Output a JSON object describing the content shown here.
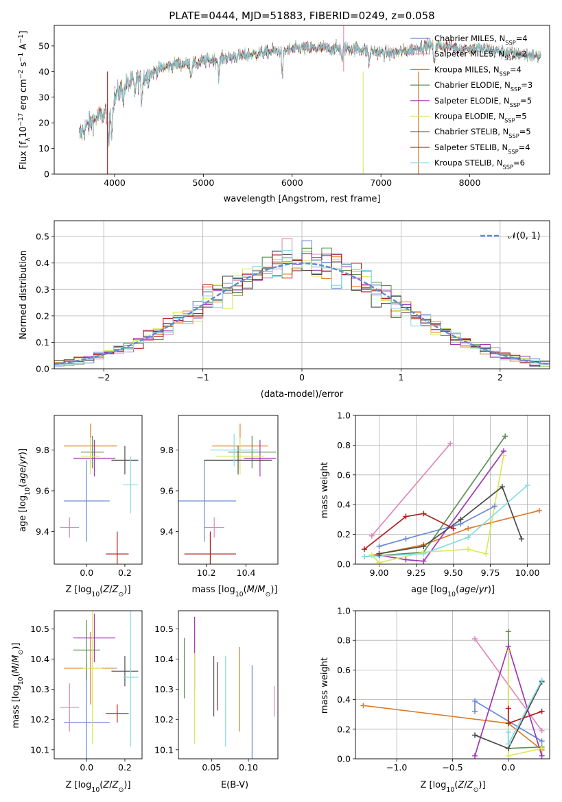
{
  "chart_data": [
    {
      "type": "line",
      "title": "PLATE=0444, MJD=51883, FIBERID=0249, z=0.058",
      "xlabel": "wavelength [Angstrom, rest frame]",
      "ylabel": "Flux [f_λ10^-17 erg cm^-2 s^-1 A^-1]",
      "xlim": [
        3320,
        8900
      ],
      "ylim": [
        0,
        58
      ],
      "xticks": [
        4000,
        5000,
        6000,
        7000,
        8000
      ],
      "yticks": [
        0,
        10,
        20,
        30,
        40,
        50
      ],
      "legend_position": "upper-right",
      "series": [
        {
          "name": "Chabrier MILES, N_SSP=4",
          "color": "#6a8ad8"
        },
        {
          "name": "Salpeter MILES, N_SSP=2",
          "color": "#e388b5"
        },
        {
          "name": "Kroupa MILES, N_SSP=4",
          "color": "#e07a25"
        },
        {
          "name": "Chabrier ELODIE, N_SSP=3",
          "color": "#5f8f55"
        },
        {
          "name": "Salpeter ELODIE, N_SSP=5",
          "color": "#9e35b5"
        },
        {
          "name": "Kroupa ELODIE, N_SSP=5",
          "color": "#dbe85a"
        },
        {
          "name": "Chabrier STELIB, N_SSP=5",
          "color": "#4a4a4a"
        },
        {
          "name": "Salpeter STELIB, N_SSP=4",
          "color": "#b01f1f"
        },
        {
          "name": "Kroupa STELIB, N_SSP=6",
          "color": "#86dce6"
        }
      ],
      "continuum": [
        [
          3600,
          15
        ],
        [
          3700,
          19
        ],
        [
          3800,
          22
        ],
        [
          3900,
          24
        ],
        [
          4000,
          30
        ],
        [
          4100,
          34
        ],
        [
          4200,
          36
        ],
        [
          4300,
          37
        ],
        [
          4400,
          39
        ],
        [
          4500,
          41
        ],
        [
          4700,
          43
        ],
        [
          4900,
          43
        ],
        [
          5000,
          44
        ],
        [
          5200,
          45
        ],
        [
          5400,
          46
        ],
        [
          5600,
          47
        ],
        [
          5800,
          48
        ],
        [
          5900,
          48
        ],
        [
          6100,
          49
        ],
        [
          6300,
          49
        ],
        [
          6500,
          49
        ],
        [
          6700,
          49
        ],
        [
          6900,
          48
        ],
        [
          7100,
          47
        ],
        [
          7300,
          48
        ],
        [
          7500,
          50
        ],
        [
          7700,
          50
        ],
        [
          7900,
          49
        ],
        [
          8100,
          49
        ],
        [
          8300,
          48
        ],
        [
          8500,
          47
        ],
        [
          8800,
          46
        ]
      ],
      "absorption_features": [
        [
          3934,
          14
        ],
        [
          3969,
          12
        ],
        [
          4102,
          5
        ],
        [
          4227,
          5
        ],
        [
          4304,
          8
        ],
        [
          4861,
          5
        ],
        [
          5175,
          7
        ],
        [
          5890,
          10
        ],
        [
          6563,
          5
        ],
        [
          6867,
          5
        ],
        [
          7600,
          8
        ]
      ],
      "spikes": [
        [
          3920,
          0,
          "#b01f1f"
        ],
        [
          6800,
          0,
          "#dbe85a"
        ],
        [
          7420,
          0,
          "#e07a25"
        ],
        [
          6580,
          58,
          "#e388b5"
        ]
      ]
    },
    {
      "type": "bar",
      "xlabel": "(data-model)/error",
      "ylabel": "Normed distribution",
      "xlim": [
        -2.5,
        2.5
      ],
      "ylim": [
        0,
        0.56
      ],
      "xticks": [
        -2,
        -1,
        0,
        1,
        2
      ],
      "yticks": [
        0.0,
        0.1,
        0.2,
        0.3,
        0.4,
        0.5
      ],
      "bin_width": 0.1,
      "legend": {
        "label": "𝒩(0, 1)",
        "position": "upper-right",
        "color": "#5b8ad6"
      }
    },
    {
      "type": "scatter",
      "xlabel": "Z [log10(Z/Z⊙)]",
      "ylabel": "age [log10(age/yr)]",
      "xlim": [
        -0.17,
        0.29
      ],
      "ylim": [
        9.24,
        9.97
      ],
      "xticks": [
        0.0,
        0.2
      ],
      "yticks": [
        9.4,
        9.6,
        9.8
      ],
      "points": [
        {
          "x": 0.0,
          "y": 9.55,
          "ex": 0.12,
          "ey": 0.2,
          "color": "#6a8ad8"
        },
        {
          "x": -0.09,
          "y": 9.42,
          "ex": 0.05,
          "ey": 0.05,
          "color": "#e388b5"
        },
        {
          "x": 0.02,
          "y": 9.82,
          "ex": 0.14,
          "ey": 0.11,
          "color": "#e07a25"
        },
        {
          "x": 0.03,
          "y": 9.79,
          "ex": 0.06,
          "ey": 0.08,
          "color": "#5f8f55"
        },
        {
          "x": 0.04,
          "y": 9.76,
          "ex": 0.11,
          "ey": 0.09,
          "color": "#9e35b5"
        },
        {
          "x": 0.02,
          "y": 9.77,
          "ex": 0.05,
          "ey": 0.09,
          "color": "#dbe85a"
        },
        {
          "x": 0.2,
          "y": 9.75,
          "ex": 0.07,
          "ey": 0.07,
          "color": "#4a4a4a"
        },
        {
          "x": 0.16,
          "y": 9.29,
          "ex": 0.06,
          "ey": 0.11,
          "color": "#b01f1f"
        },
        {
          "x": 0.23,
          "y": 9.63,
          "ex": 0.04,
          "ey": 0.14,
          "color": "#86dce6"
        }
      ]
    },
    {
      "type": "scatter",
      "xlabel": "mass [log10(M/M⊙)]",
      "xlim": [
        10.06,
        10.56
      ],
      "ylim": [
        9.24,
        9.97
      ],
      "xticks": [
        10.2,
        10.4
      ],
      "yticks": [
        9.4,
        9.6,
        9.8
      ],
      "points": [
        {
          "x": 10.19,
          "y": 9.55,
          "ex": 0.16,
          "ey": 0.2,
          "color": "#6a8ad8"
        },
        {
          "x": 10.24,
          "y": 9.42,
          "ex": 0.05,
          "ey": 0.05,
          "color": "#e388b5"
        },
        {
          "x": 10.37,
          "y": 9.82,
          "ex": 0.14,
          "ey": 0.11,
          "color": "#e07a25"
        },
        {
          "x": 10.43,
          "y": 9.79,
          "ex": 0.12,
          "ey": 0.08,
          "color": "#5f8f55"
        },
        {
          "x": 10.47,
          "y": 9.76,
          "ex": 0.08,
          "ey": 0.09,
          "color": "#9e35b5"
        },
        {
          "x": 10.37,
          "y": 9.77,
          "ex": 0.12,
          "ey": 0.09,
          "color": "#dbe85a"
        },
        {
          "x": 10.36,
          "y": 9.75,
          "ex": 0.17,
          "ey": 0.07,
          "color": "#4a4a4a"
        },
        {
          "x": 10.22,
          "y": 9.29,
          "ex": 0.13,
          "ey": 0.11,
          "color": "#b01f1f"
        },
        {
          "x": 10.34,
          "y": 9.8,
          "ex": 0.12,
          "ey": 0.08,
          "color": "#86dce6"
        }
      ]
    },
    {
      "type": "line",
      "xlabel": "age [log10(age/yr)]",
      "ylabel": "mass weight",
      "xlim": [
        8.84,
        10.15
      ],
      "ylim": [
        0,
        1.0
      ],
      "xticks": [
        9.0,
        9.25,
        9.5,
        9.75,
        10.0
      ],
      "yticks": [
        0.0,
        0.2,
        0.4,
        0.6,
        0.8,
        1.0
      ],
      "series": [
        {
          "color": "#6a8ad8",
          "x": [
            9.0,
            9.18,
            9.55,
            9.78
          ],
          "y": [
            0.12,
            0.17,
            0.27,
            0.39
          ]
        },
        {
          "color": "#e388b5",
          "x": [
            8.95,
            9.48
          ],
          "y": [
            0.19,
            0.81
          ]
        },
        {
          "color": "#e07a25",
          "x": [
            8.95,
            9.3,
            9.6,
            10.08
          ],
          "y": [
            0.06,
            0.13,
            0.24,
            0.36
          ]
        },
        {
          "color": "#5f8f55",
          "x": [
            8.9,
            9.3,
            9.85
          ],
          "y": [
            0.05,
            0.08,
            0.86
          ]
        },
        {
          "color": "#9e35b5",
          "x": [
            9.0,
            9.18,
            9.3,
            9.84
          ],
          "y": [
            0.06,
            0.03,
            0.02,
            0.76
          ]
        },
        {
          "color": "#dbe85a",
          "x": [
            8.95,
            9.0,
            9.3,
            9.6,
            9.72,
            9.84
          ],
          "y": [
            0.06,
            0.01,
            0.08,
            0.1,
            0.07,
            0.73
          ]
        },
        {
          "color": "#4a4a4a",
          "x": [
            9.0,
            9.3,
            9.55,
            9.83,
            9.96
          ],
          "y": [
            0.07,
            0.12,
            0.3,
            0.52,
            0.17
          ]
        },
        {
          "color": "#b01f1f",
          "x": [
            8.9,
            9.18,
            9.3,
            9.5
          ],
          "y": [
            0.1,
            0.32,
            0.34,
            0.24
          ]
        },
        {
          "color": "#86dce6",
          "x": [
            8.9,
            9.3,
            9.6,
            10.0
          ],
          "y": [
            0.05,
            0.07,
            0.18,
            0.53
          ]
        }
      ]
    },
    {
      "type": "scatter",
      "xlabel": "Z [log10(Z/Z⊙)]",
      "ylabel": "mass [log10(M/M⊙)]",
      "xlim": [
        -0.17,
        0.29
      ],
      "ylim": [
        10.07,
        10.56
      ],
      "xticks": [
        0.0,
        0.2
      ],
      "yticks": [
        10.1,
        10.2,
        10.3,
        10.4,
        10.5
      ],
      "points": [
        {
          "x": 0.0,
          "y": 10.19,
          "ex": 0.12,
          "ey": 0.19,
          "color": "#6a8ad8"
        },
        {
          "x": -0.09,
          "y": 10.24,
          "ex": 0.05,
          "ey": 0.08,
          "color": "#e388b5"
        },
        {
          "x": 0.02,
          "y": 10.37,
          "ex": 0.14,
          "ey": 0.12,
          "color": "#e07a25"
        },
        {
          "x": 0.0,
          "y": 10.43,
          "ex": 0.07,
          "ey": 0.1,
          "color": "#5f8f55"
        },
        {
          "x": 0.04,
          "y": 10.47,
          "ex": 0.11,
          "ey": 0.08,
          "color": "#9e35b5"
        },
        {
          "x": 0.03,
          "y": 10.37,
          "ex": 0.05,
          "ey": 0.25,
          "color": "#dbe85a"
        },
        {
          "x": 0.2,
          "y": 10.36,
          "ex": 0.07,
          "ey": 0.05,
          "color": "#4a4a4a"
        },
        {
          "x": 0.16,
          "y": 10.22,
          "ex": 0.06,
          "ey": 0.03,
          "color": "#b01f1f"
        },
        {
          "x": 0.23,
          "y": 10.34,
          "ex": 0.04,
          "ey": 0.23,
          "color": "#86dce6"
        }
      ]
    },
    {
      "type": "scatter",
      "xlabel": "E(B-V)",
      "xlim": [
        0.005,
        0.14
      ],
      "ylim": [
        10.07,
        10.56
      ],
      "xticks": [
        0.05,
        0.1
      ],
      "yticks": [
        10.1,
        10.2,
        10.3,
        10.4,
        10.5
      ],
      "points": [
        {
          "x": 0.105,
          "y": 10.19,
          "ey": 0.19,
          "color": "#6a8ad8"
        },
        {
          "x": 0.135,
          "y": 10.26,
          "ey": 0.05,
          "color": "#e388b5"
        },
        {
          "x": 0.088,
          "y": 10.3,
          "ey": 0.14,
          "color": "#e07a25"
        },
        {
          "x": 0.013,
          "y": 10.37,
          "ey": 0.1,
          "color": "#5f8f55"
        },
        {
          "x": 0.027,
          "y": 10.42,
          "ey": 0.12,
          "color": "#9e35b5"
        },
        {
          "x": 0.027,
          "y": 10.27,
          "ey": 0.15,
          "color": "#dbe85a"
        },
        {
          "x": 0.053,
          "y": 10.31,
          "ey": 0.1,
          "color": "#4a4a4a"
        },
        {
          "x": 0.058,
          "y": 10.31,
          "ey": 0.08,
          "color": "#b01f1f"
        },
        {
          "x": 0.069,
          "y": 10.26,
          "ey": 0.15,
          "color": "#86dce6"
        }
      ]
    },
    {
      "type": "line",
      "xlabel": "Z [log10(Z/Z⊙)]",
      "ylabel": "mass weight",
      "xlim": [
        -1.37,
        0.37
      ],
      "ylim": [
        0,
        1.0
      ],
      "xticks": [
        -1.0,
        -0.5,
        0.0
      ],
      "yticks": [
        0.0,
        0.2,
        0.4,
        0.6,
        0.8,
        1.0
      ],
      "series": [
        {
          "color": "#6a8ad8",
          "x": [
            -0.3,
            -0.3,
            0.3
          ],
          "y": [
            0.32,
            0.39,
            0.12
          ]
        },
        {
          "color": "#e388b5",
          "x": [
            -0.3,
            0.3
          ],
          "y": [
            0.81,
            0.19
          ]
        },
        {
          "color": "#e07a25",
          "x": [
            -1.3,
            0.0,
            0.3
          ],
          "y": [
            0.36,
            0.24,
            0.06
          ]
        },
        {
          "color": "#5f8f55",
          "x": [
            0.0,
            0.0,
            0.3
          ],
          "y": [
            0.86,
            0.07,
            0.08
          ]
        },
        {
          "color": "#9e35b5",
          "x": [
            -0.3,
            0.0,
            0.3
          ],
          "y": [
            0.02,
            0.76,
            0.02
          ]
        },
        {
          "color": "#dbe85a",
          "x": [
            0.0,
            0.0,
            0.3
          ],
          "y": [
            0.73,
            0.02,
            0.07
          ]
        },
        {
          "color": "#4a4a4a",
          "x": [
            -0.3,
            0.0,
            0.3
          ],
          "y": [
            0.16,
            0.07,
            0.52
          ]
        },
        {
          "color": "#b01f1f",
          "x": [
            0.0,
            0.0,
            0.3
          ],
          "y": [
            0.34,
            0.24,
            0.32
          ]
        },
        {
          "color": "#86dce6",
          "x": [
            0.0,
            0.0,
            0.3
          ],
          "y": [
            0.18,
            0.1,
            0.53
          ]
        }
      ]
    }
  ]
}
